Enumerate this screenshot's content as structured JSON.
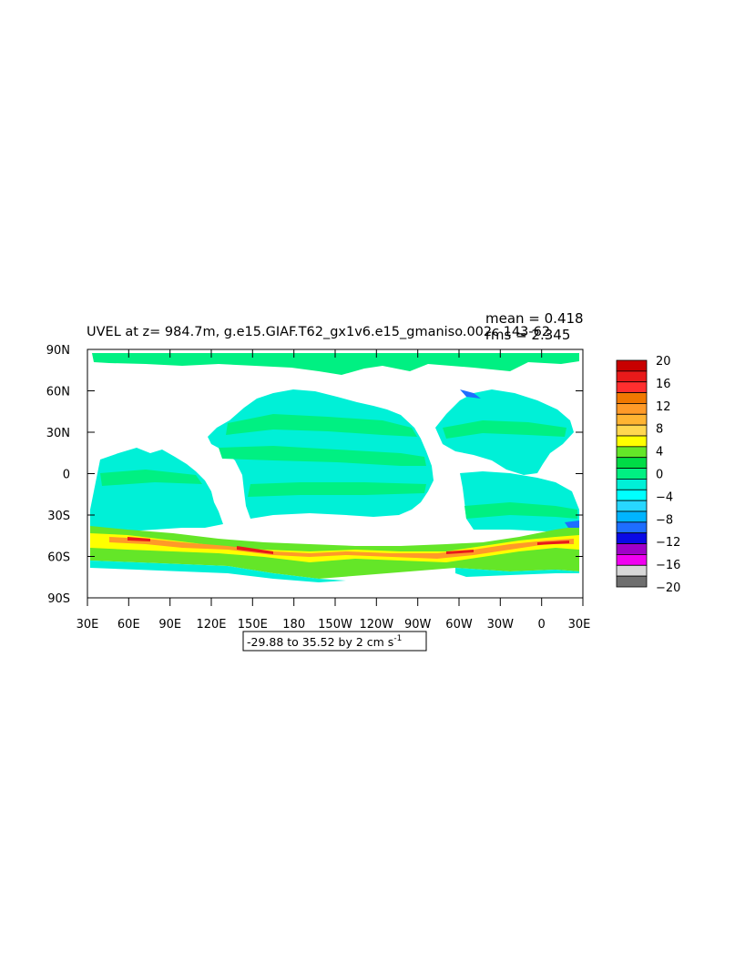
{
  "chart_data": {
    "type": "heatmap",
    "title": "UVEL at z= 984.7m, g.e15.GIAF.T62_gx1v6.e15_gmaniso.002c 143-62",
    "stats": {
      "mean": "mean = 0.418",
      "rms": "rms = 2.345"
    },
    "contour_info": "-29.88 to 35.52 by 2 cm s",
    "contour_info_sup": "-1",
    "xlabel": "",
    "ylabel": "",
    "x_ticks": [
      "30E",
      "60E",
      "90E",
      "120E",
      "150E",
      "180",
      "150W",
      "120W",
      "90W",
      "60W",
      "30W",
      "0",
      "30E"
    ],
    "y_ticks": [
      "90N",
      "60N",
      "30N",
      "0",
      "30S",
      "60S",
      "90S"
    ],
    "xlim": [
      "30E",
      "30E"
    ],
    "ylim": [
      "90S",
      "90N"
    ],
    "colorbar": {
      "labels": [
        "20",
        "16",
        "12",
        "8",
        "4",
        "0",
        "−4",
        "−8",
        "−12",
        "−16",
        "−20"
      ],
      "colors": [
        "#c80000",
        "#e81a1a",
        "#ff2f2f",
        "#f07800",
        "#ff9a28",
        "#ffb432",
        "#ffd750",
        "#ffff00",
        "#64e628",
        "#00dc46",
        "#00f082",
        "#00f0d7",
        "#00ffff",
        "#28d7ff",
        "#00b4ff",
        "#1e6eff",
        "#0a0ae6",
        "#a000c8",
        "#f000f0",
        "#d7d7d7",
        "#6e6e6e"
      ]
    },
    "grid": false
  }
}
